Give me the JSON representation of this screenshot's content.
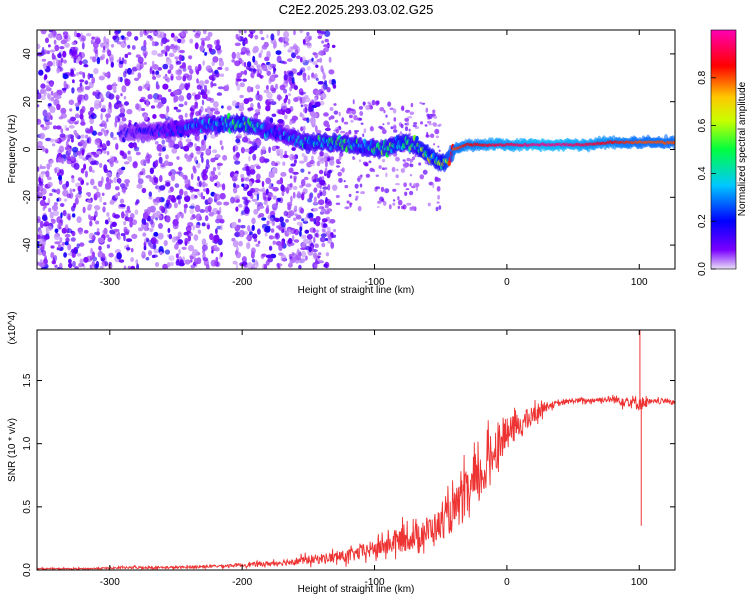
{
  "chart_data": [
    {
      "type": "heatmap",
      "title": "C2E2.2025.293.03.02.G25",
      "xlabel": "Height of straight line (km)",
      "ylabel": "Frequency (Hz)",
      "xlim": [
        -355,
        127
      ],
      "ylim": [
        -50,
        50
      ],
      "xticks": [
        -300,
        -200,
        -100,
        0,
        100
      ],
      "xtick_labels": [
        "-300",
        "-200",
        "-100",
        "0",
        "100"
      ],
      "yticks": [
        -40,
        -20,
        0,
        20,
        40
      ],
      "ytick_labels": [
        "-40",
        "-20",
        "0",
        "20",
        "40"
      ],
      "colorbar": {
        "label": "Normalized spectral amplitude",
        "range": [
          0,
          1
        ],
        "ticks": [
          0.0,
          0.2,
          0.4,
          0.6,
          0.8
        ],
        "tick_labels": [
          "0.0",
          "0.2",
          "0.4",
          "0.6",
          "0.8"
        ],
        "colors": [
          "#e9dff7",
          "#7a00ff",
          "#0000ff",
          "#00c8ff",
          "#00ff40",
          "#c8ff00",
          "#ffc800",
          "#ff0000",
          "#ff00b4"
        ]
      },
      "ridge": {
        "x": [
          -290,
          -260,
          -230,
          -200,
          -175,
          -150,
          -130,
          -110,
          -95,
          -80,
          -70,
          -60,
          -50,
          -45,
          -40,
          -30,
          -20,
          -10,
          0,
          20,
          40,
          60,
          80,
          100,
          127
        ],
        "y": [
          7,
          8,
          10,
          11,
          7,
          3,
          3,
          1,
          0,
          3,
          2,
          -2,
          -6,
          -5,
          0,
          2,
          2,
          2,
          2,
          2,
          2,
          2,
          3,
          3,
          3
        ],
        "amplitude": [
          0.15,
          0.2,
          0.3,
          0.5,
          0.25,
          0.4,
          0.45,
          0.4,
          0.45,
          0.5,
          0.45,
          0.55,
          0.5,
          0.7,
          0.8,
          0.85,
          0.85,
          0.9,
          0.9,
          0.95,
          0.95,
          0.9,
          0.85,
          0.8,
          0.8
        ]
      }
    },
    {
      "type": "line",
      "xlabel": "Height of straight line (km)",
      "ylabel": "SNR (10 * v/v)",
      "y_multiplier_label": "(x10^4)",
      "xlim": [
        -355,
        127
      ],
      "ylim": [
        0,
        1.9
      ],
      "xticks": [
        -300,
        -200,
        -100,
        0,
        100
      ],
      "xtick_labels": [
        "-300",
        "-200",
        "-100",
        "0",
        "100"
      ],
      "yticks": [
        0.0,
        0.5,
        1.0,
        1.5
      ],
      "ytick_labels": [
        "0.0",
        "0.5",
        "1.0",
        "1.5"
      ],
      "series": [
        {
          "name": "SNR",
          "color": "#ee3333",
          "x": [
            -355,
            -320,
            -280,
            -250,
            -220,
            -200,
            -180,
            -160,
            -140,
            -120,
            -110,
            -100,
            -90,
            -80,
            -70,
            -60,
            -50,
            -40,
            -30,
            -20,
            -15,
            -10,
            -5,
            0,
            10,
            20,
            25,
            30,
            40,
            50,
            60,
            70,
            80,
            90,
            100,
            110,
            120,
            127
          ],
          "y": [
            0.01,
            0.01,
            0.02,
            0.02,
            0.03,
            0.04,
            0.05,
            0.07,
            0.09,
            0.11,
            0.14,
            0.17,
            0.2,
            0.24,
            0.26,
            0.31,
            0.36,
            0.46,
            0.6,
            0.72,
            0.82,
            0.95,
            1.02,
            1.08,
            1.15,
            1.22,
            1.27,
            1.3,
            1.32,
            1.34,
            1.34,
            1.35,
            1.35,
            1.34,
            1.32,
            1.33,
            1.34,
            1.33
          ],
          "noise": [
            0.005,
            0.005,
            0.01,
            0.01,
            0.01,
            0.015,
            0.02,
            0.03,
            0.04,
            0.05,
            0.06,
            0.07,
            0.08,
            0.1,
            0.1,
            0.12,
            0.12,
            0.16,
            0.2,
            0.2,
            0.2,
            0.18,
            0.16,
            0.12,
            0.1,
            0.08,
            0.06,
            0.03,
            0.02,
            0.02,
            0.02,
            0.02,
            0.03,
            0.05,
            0.06,
            0.02,
            0.02,
            0.02
          ]
        }
      ],
      "spikes": [
        {
          "x": 100.5,
          "y": 1.9
        },
        {
          "x": 101.5,
          "y": 0.35
        }
      ]
    }
  ]
}
